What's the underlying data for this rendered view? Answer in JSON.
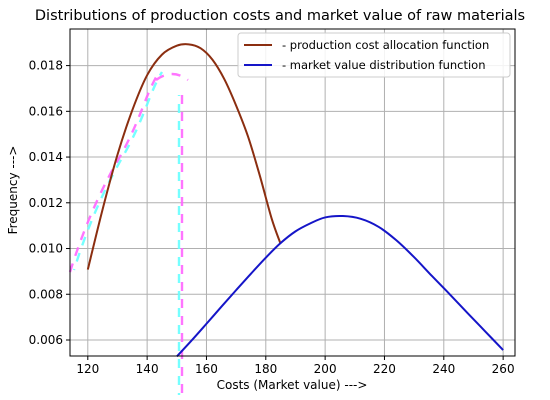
{
  "chart_data": {
    "type": "line",
    "title": "Distributions of production costs and market value of raw materials",
    "xlabel": "Costs (Market value) --->",
    "ylabel": "Frequency --->",
    "xlim": [
      114,
      264
    ],
    "ylim": [
      0.0053,
      0.0196
    ],
    "x_ticks": [
      120,
      140,
      160,
      180,
      200,
      220,
      240,
      260
    ],
    "y_ticks": [
      0.006,
      0.008,
      0.01,
      0.012,
      0.014,
      0.016,
      0.018
    ],
    "x_tick_labels": [
      "120",
      "140",
      "160",
      "180",
      "200",
      "220",
      "240",
      "260"
    ],
    "y_tick_labels": [
      "0.006",
      "0.008",
      "0.010",
      "0.012",
      "0.014",
      "0.016",
      "0.018"
    ],
    "grid": true,
    "legend_position": "top-right",
    "series": [
      {
        "name": "- production cost allocation function",
        "color": "#8b2e10",
        "x": [
          120,
          125,
          130,
          135,
          140,
          145,
          150,
          154,
          158,
          162,
          166,
          170,
          174,
          178,
          182,
          185
        ],
        "y": [
          0.00908,
          0.01172,
          0.0141,
          0.01605,
          0.01758,
          0.01848,
          0.01887,
          0.01893,
          0.01876,
          0.01826,
          0.01741,
          0.01625,
          0.0149,
          0.01318,
          0.0113,
          0.0102
        ]
      },
      {
        "name": "- market value distribution function",
        "color": "#1515c8",
        "x": [
          150,
          155,
          160,
          165,
          170,
          175,
          180,
          185,
          190,
          195,
          200,
          206,
          212,
          218,
          224,
          230,
          236,
          242,
          248,
          254,
          260
        ],
        "y": [
          0.00528,
          0.00598,
          0.00671,
          0.00745,
          0.00818,
          0.0089,
          0.0096,
          0.01024,
          0.01075,
          0.0111,
          0.01136,
          0.01142,
          0.0113,
          0.01095,
          0.01036,
          0.00962,
          0.0088,
          0.008,
          0.00718,
          0.00637,
          0.00556
        ]
      }
    ]
  }
}
